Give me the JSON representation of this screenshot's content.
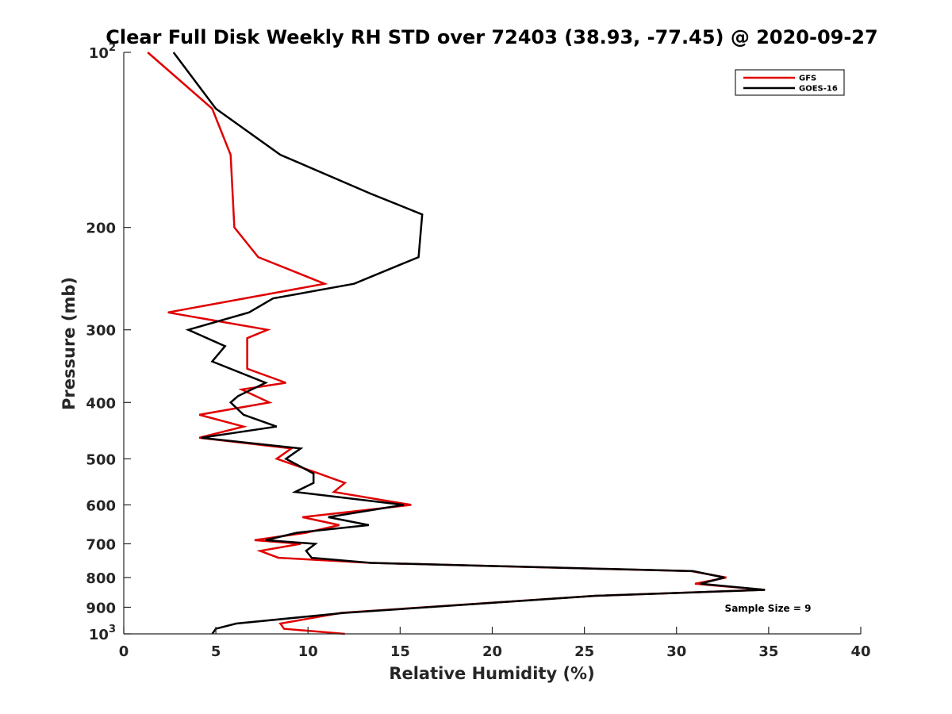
{
  "chart_data": {
    "type": "line",
    "title": "Clear Full Disk Weekly RH STD over 72403 (38.93, -77.45) @ 2020-09-27",
    "xlabel": "Relative Humidity (%)",
    "ylabel": "Pressure (mb)",
    "xlim": [
      0,
      40
    ],
    "ylim": [
      100,
      1000
    ],
    "y_scale": "log",
    "y_reversed": true,
    "x_ticks": [
      "0",
      "5",
      "10",
      "15",
      "20",
      "25",
      "30",
      "35",
      "40"
    ],
    "x_tick_values": [
      0,
      5,
      10,
      15,
      20,
      25,
      30,
      35,
      40
    ],
    "y_ticks": [
      {
        "value": 100,
        "base": "10",
        "exp": "2"
      },
      {
        "value": 200,
        "base": "200",
        "exp": ""
      },
      {
        "value": 300,
        "base": "300",
        "exp": ""
      },
      {
        "value": 400,
        "base": "400",
        "exp": ""
      },
      {
        "value": 500,
        "base": "500",
        "exp": ""
      },
      {
        "value": 600,
        "base": "600",
        "exp": ""
      },
      {
        "value": 700,
        "base": "700",
        "exp": ""
      },
      {
        "value": 800,
        "base": "800",
        "exp": ""
      },
      {
        "value": 900,
        "base": "900",
        "exp": ""
      },
      {
        "value": 1000,
        "base": "10",
        "exp": "3"
      }
    ],
    "grid": false,
    "legend_position": "top-right",
    "annotation": "Sample Size = 9",
    "series": [
      {
        "name": "GFS",
        "color": "#e00000",
        "points": [
          [
            1.3,
            100
          ],
          [
            4.8,
            125
          ],
          [
            5.8,
            150
          ],
          [
            6.0,
            200
          ],
          [
            7.3,
            225
          ],
          [
            10.9,
            250
          ],
          [
            2.4,
            280
          ],
          [
            7.8,
            300
          ],
          [
            6.7,
            310
          ],
          [
            6.7,
            350
          ],
          [
            8.8,
            370
          ],
          [
            6.4,
            380
          ],
          [
            7.9,
            400
          ],
          [
            4.1,
            420
          ],
          [
            6.5,
            440
          ],
          [
            4.1,
            460
          ],
          [
            9.1,
            480
          ],
          [
            8.3,
            500
          ],
          [
            10.6,
            530
          ],
          [
            12.0,
            550
          ],
          [
            11.4,
            570
          ],
          [
            15.6,
            600
          ],
          [
            9.7,
            630
          ],
          [
            11.7,
            650
          ],
          [
            9.9,
            670
          ],
          [
            7.1,
            690
          ],
          [
            9.6,
            700
          ],
          [
            7.4,
            720
          ],
          [
            8.4,
            740
          ],
          [
            13.4,
            755
          ],
          [
            30.8,
            780
          ],
          [
            32.7,
            800
          ],
          [
            31.0,
            820
          ],
          [
            34.8,
            840
          ],
          [
            25.6,
            860
          ],
          [
            11.8,
            920
          ],
          [
            8.5,
            960
          ],
          [
            8.7,
            980
          ],
          [
            12.0,
            1000
          ]
        ]
      },
      {
        "name": "GOES-16",
        "color": "#000000",
        "points": [
          [
            2.7,
            100
          ],
          [
            5.0,
            125
          ],
          [
            8.5,
            150
          ],
          [
            13.4,
            175
          ],
          [
            16.2,
            190
          ],
          [
            16.0,
            225
          ],
          [
            12.5,
            250
          ],
          [
            8.1,
            265
          ],
          [
            6.8,
            280
          ],
          [
            3.5,
            300
          ],
          [
            5.5,
            320
          ],
          [
            4.8,
            340
          ],
          [
            7.7,
            370
          ],
          [
            6.2,
            390
          ],
          [
            5.8,
            400
          ],
          [
            6.5,
            420
          ],
          [
            8.3,
            440
          ],
          [
            4.2,
            460
          ],
          [
            9.6,
            480
          ],
          [
            8.8,
            500
          ],
          [
            10.3,
            530
          ],
          [
            10.3,
            550
          ],
          [
            9.3,
            570
          ],
          [
            15.2,
            600
          ],
          [
            11.1,
            630
          ],
          [
            13.3,
            650
          ],
          [
            9.4,
            670
          ],
          [
            7.7,
            690
          ],
          [
            10.4,
            700
          ],
          [
            9.9,
            720
          ],
          [
            10.2,
            740
          ],
          [
            13.4,
            755
          ],
          [
            30.9,
            780
          ],
          [
            32.6,
            800
          ],
          [
            31.3,
            820
          ],
          [
            34.8,
            840
          ],
          [
            25.6,
            860
          ],
          [
            12.0,
            920
          ],
          [
            6.1,
            960
          ],
          [
            5.0,
            980
          ],
          [
            4.8,
            1000
          ]
        ]
      }
    ]
  }
}
